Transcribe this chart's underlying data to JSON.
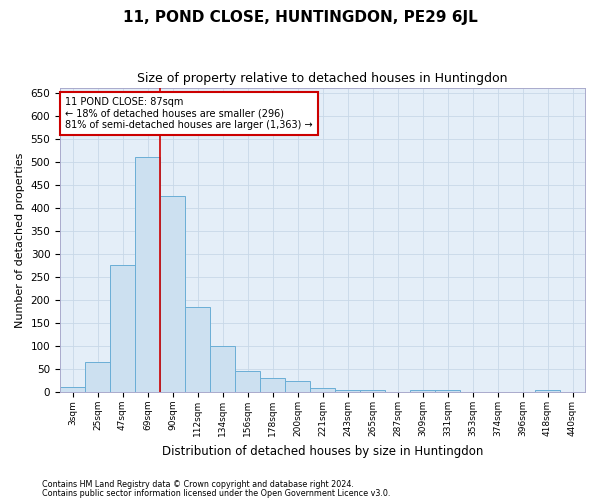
{
  "title": "11, POND CLOSE, HUNTINGDON, PE29 6JL",
  "subtitle": "Size of property relative to detached houses in Huntingdon",
  "xlabel": "Distribution of detached houses by size in Huntingdon",
  "ylabel": "Number of detached properties",
  "footnote1": "Contains HM Land Registry data © Crown copyright and database right 2024.",
  "footnote2": "Contains public sector information licensed under the Open Government Licence v3.0.",
  "bar_labels": [
    "3sqm",
    "25sqm",
    "47sqm",
    "69sqm",
    "90sqm",
    "112sqm",
    "134sqm",
    "156sqm",
    "178sqm",
    "200sqm",
    "221sqm",
    "243sqm",
    "265sqm",
    "287sqm",
    "309sqm",
    "331sqm",
    "353sqm",
    "374sqm",
    "396sqm",
    "418sqm",
    "440sqm"
  ],
  "bar_values": [
    12,
    65,
    275,
    510,
    425,
    185,
    100,
    45,
    30,
    25,
    10,
    5,
    5,
    0,
    5,
    5,
    0,
    0,
    0,
    5,
    0
  ],
  "bar_color": "#cce0f0",
  "bar_edge_color": "#6aaed6",
  "vline_index": 4,
  "vline_color": "#cc0000",
  "annotation_text": "11 POND CLOSE: 87sqm\n← 18% of detached houses are smaller (296)\n81% of semi-detached houses are larger (1,363) →",
  "annotation_box_color": "#ffffff",
  "annotation_box_edge": "#cc0000",
  "ylim": [
    0,
    660
  ],
  "yticks": [
    0,
    50,
    100,
    150,
    200,
    250,
    300,
    350,
    400,
    450,
    500,
    550,
    600,
    650
  ],
  "grid_color": "#c8d8e8",
  "bg_color": "#e4eef8",
  "title_fontsize": 11,
  "subtitle_fontsize": 9,
  "ylabel_fontsize": 8,
  "xlabel_fontsize": 8.5
}
